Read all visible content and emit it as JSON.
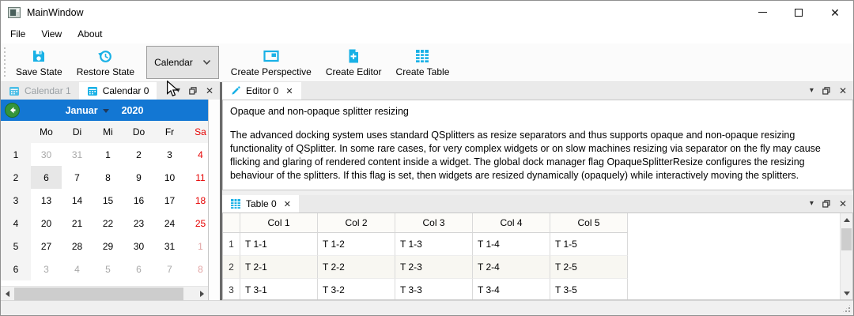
{
  "window": {
    "title": "MainWindow"
  },
  "glyphs": {
    "minimize": "–",
    "close": "✕",
    "dock_menu_arrow": "▾"
  },
  "menu": {
    "items": [
      {
        "label": "File"
      },
      {
        "label": "View"
      },
      {
        "label": "About"
      }
    ]
  },
  "toolbar": {
    "save": {
      "label": "Save State",
      "icon": "floppy-disk"
    },
    "restore": {
      "label": "Restore State",
      "icon": "history-clock"
    },
    "combo": {
      "value": "Calendar",
      "icon": "chevron-down"
    },
    "create_perspective": {
      "label": "Create Perspective",
      "icon": "perspective-frame"
    },
    "create_editor": {
      "label": "Create Editor",
      "icon": "document-plus"
    },
    "create_table": {
      "label": "Create Table",
      "icon": "table-grid"
    }
  },
  "colors": {
    "accent_cyan": "#19b1e6",
    "calendar_nav_blue": "#1377d3",
    "weekend_red": "#e60000",
    "next_month_red": "#e2a4a4",
    "other_month_gray": "#a8a8a8"
  },
  "calendar_dock": {
    "tabs": [
      {
        "label": "Calendar 1",
        "icon": "calendar",
        "active": false
      },
      {
        "label": "Calendar 0",
        "icon": "calendar",
        "active": true
      }
    ],
    "nav": {
      "month": "Januar",
      "year": "2020"
    },
    "day_headers": [
      {
        "label": "Mo"
      },
      {
        "label": "Di"
      },
      {
        "label": "Mi"
      },
      {
        "label": "Do"
      },
      {
        "label": "Fr"
      },
      {
        "label": "Sa",
        "red": true
      }
    ],
    "weeks": [
      {
        "num": "1",
        "days": [
          {
            "d": "30",
            "cls": "muted"
          },
          {
            "d": "31",
            "cls": "muted"
          },
          {
            "d": "1"
          },
          {
            "d": "2"
          },
          {
            "d": "3"
          },
          {
            "d": "4",
            "cls": "red"
          }
        ]
      },
      {
        "num": "2",
        "days": [
          {
            "d": "6",
            "cls": "selected"
          },
          {
            "d": "7"
          },
          {
            "d": "8"
          },
          {
            "d": "9"
          },
          {
            "d": "10"
          },
          {
            "d": "11",
            "cls": "red"
          }
        ]
      },
      {
        "num": "3",
        "days": [
          {
            "d": "13"
          },
          {
            "d": "14"
          },
          {
            "d": "15"
          },
          {
            "d": "16"
          },
          {
            "d": "17"
          },
          {
            "d": "18",
            "cls": "red"
          }
        ]
      },
      {
        "num": "4",
        "days": [
          {
            "d": "20"
          },
          {
            "d": "21"
          },
          {
            "d": "22"
          },
          {
            "d": "23"
          },
          {
            "d": "24"
          },
          {
            "d": "25",
            "cls": "red"
          }
        ]
      },
      {
        "num": "5",
        "days": [
          {
            "d": "27"
          },
          {
            "d": "28"
          },
          {
            "d": "29"
          },
          {
            "d": "30"
          },
          {
            "d": "31"
          },
          {
            "d": "1",
            "cls": "muted-red"
          }
        ]
      },
      {
        "num": "6",
        "days": [
          {
            "d": "3",
            "cls": "muted"
          },
          {
            "d": "4",
            "cls": "muted"
          },
          {
            "d": "5",
            "cls": "muted"
          },
          {
            "d": "6",
            "cls": "muted"
          },
          {
            "d": "7",
            "cls": "muted"
          },
          {
            "d": "8",
            "cls": "muted-red"
          }
        ]
      }
    ]
  },
  "editor_dock": {
    "tab": {
      "label": "Editor 0",
      "icon": "pencil"
    },
    "heading": "Opaque and non-opaque splitter resizing",
    "body": "The advanced docking system uses standard QSplitters as resize separators and thus supports opaque and non-opaque resizing functionality of QSplitter. In some rare cases, for very complex widgets or on slow machines resizing via separator on the fly may cause flicking and glaring of rendered content inside a widget. The global dock manager flag OpaqueSplitterResize configures the resizing behaviour of the splitters. If this flag is set, then widgets are resized dynamically (opaquely) while interactively moving the splitters."
  },
  "table_dock": {
    "tab": {
      "label": "Table 0",
      "icon": "table-grid"
    },
    "columns": [
      "Col 1",
      "Col 2",
      "Col 3",
      "Col 4",
      "Col 5"
    ],
    "rows": [
      {
        "num": "1",
        "cells": [
          "T 1-1",
          "T 1-2",
          "T 1-3",
          "T 1-4",
          "T 1-5"
        ]
      },
      {
        "num": "2",
        "cells": [
          "T 2-1",
          "T 2-2",
          "T 2-3",
          "T 2-4",
          "T 2-5"
        ]
      },
      {
        "num": "3",
        "cells": [
          "T 3-1",
          "T 3-2",
          "T 3-3",
          "T 3-4",
          "T 3-5"
        ]
      }
    ]
  }
}
